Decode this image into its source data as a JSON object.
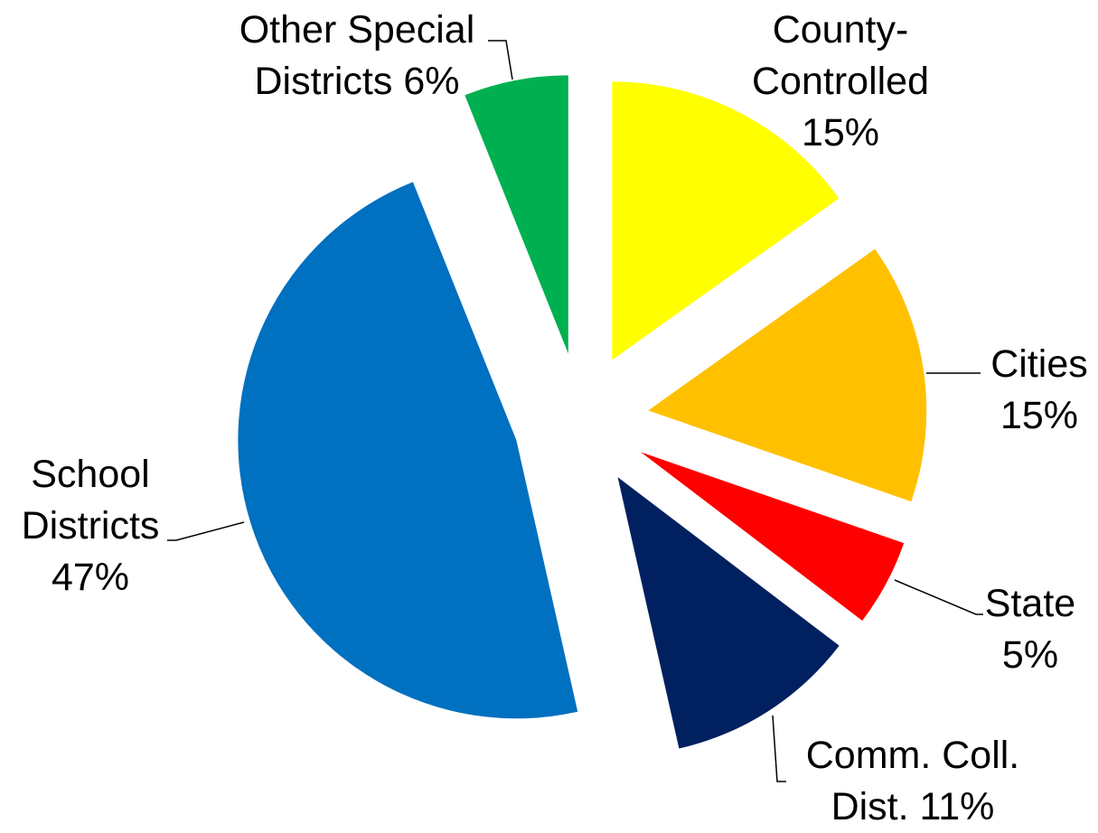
{
  "chart_data": {
    "type": "pie",
    "categories": [
      "County-Controlled",
      "Cities",
      "State",
      "Comm. Coll. Dist.",
      "School Districts",
      "Other Special Districts"
    ],
    "values": [
      15,
      15,
      5,
      11,
      47,
      6
    ],
    "value_labels": [
      "15%",
      "15%",
      "5%",
      "11%",
      "47%",
      "6%"
    ],
    "colors": [
      "#FFFF00",
      "#FFC000",
      "#FF0000",
      "#002060",
      "#0070C0",
      "#00B050"
    ],
    "exploded": true
  }
}
